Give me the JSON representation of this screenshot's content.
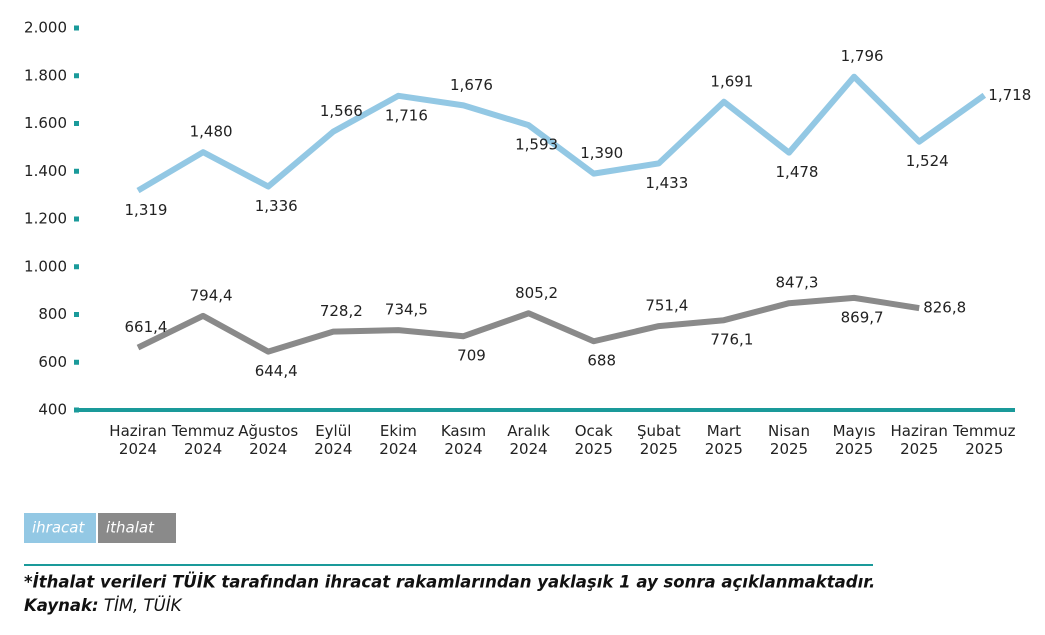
{
  "chart_data": {
    "type": "line",
    "categories": [
      "Haziran 2024",
      "Temmuz 2024",
      "Ağustos 2024",
      "Eylül 2024",
      "Ekim 2024",
      "Kasım 2024",
      "Aralık 2024",
      "Ocak 2025",
      "Şubat 2025",
      "Mart 2025",
      "Nisan 2025",
      "Mayıs 2025",
      "Haziran 2025",
      "Temmuz 2025"
    ],
    "series": [
      {
        "name": "ihracat",
        "color": "#93c8e4",
        "values": [
          1319,
          1480,
          1336,
          1566,
          1716,
          1676,
          1593,
          1390,
          1433,
          1691,
          1478,
          1796,
          1524,
          1718
        ],
        "value_labels": [
          "1,319",
          "1,480",
          "1,336",
          "1,566",
          "1,716",
          "1,676",
          "1,593",
          "1,390",
          "1,433",
          "1,691",
          "1,478",
          "1,796",
          "1,524",
          "1,718"
        ]
      },
      {
        "name": "ithalat",
        "color": "#8a8a8a",
        "values": [
          661.4,
          794.4,
          644.4,
          728.2,
          734.5,
          709,
          805.2,
          688,
          751.4,
          776.1,
          847.3,
          869.7,
          826.8,
          null
        ],
        "value_labels": [
          "661,4",
          "794,4",
          "644,4",
          "728,2",
          "734,5",
          "709",
          "805,2",
          "688",
          "751,4",
          "776,1",
          "847,3",
          "869,7",
          "826,8",
          null
        ]
      }
    ],
    "ylim": [
      400,
      2000
    ],
    "yticks": [
      400,
      600,
      800,
      {
        "value": 1000,
        "label": "1.000"
      },
      {
        "value": 1200,
        "label": "1.200"
      },
      {
        "value": 1400,
        "label": "1.400"
      },
      {
        "value": 1600,
        "label": "1.600"
      },
      {
        "value": 1800,
        "label": "1.800"
      },
      {
        "value": 2000,
        "label": "2.000"
      }
    ],
    "legend": "bottom-left",
    "footnote": "*İthalat verileri TÜİK tarafından ihracat rakamlarından yaklaşık 1 ay sonra açıklanmaktadır.",
    "source_label": "Kaynak:",
    "source": "TİM, TÜİK"
  }
}
